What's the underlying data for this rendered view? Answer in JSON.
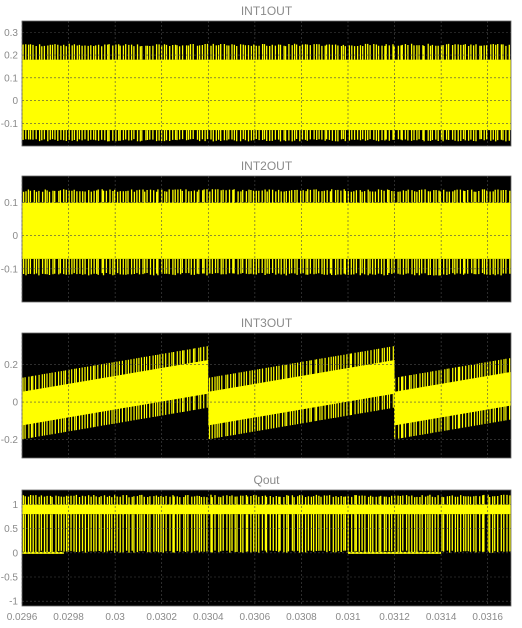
{
  "chart_data": [
    {
      "type": "line",
      "title": "INT1OUT",
      "xlim": [
        0.0296,
        0.0317
      ],
      "ylim": [
        -0.2,
        0.35
      ],
      "yticks": [
        -0.1,
        0,
        0.1,
        0.2,
        0.3
      ],
      "ytick_labels": [
        "-0.1",
        "0",
        "0.1",
        "0.2",
        "0.3"
      ],
      "grid": true,
      "series": [
        {
          "color": "#ffff00",
          "points": [
            [
              0.0296,
              -0.18
            ],
            [
              0.0316,
              -0.18
            ],
            [
              0.0316,
              0.25
            ],
            [
              0.0296,
              0.25
            ]
          ],
          "envelope": {
            "upper": 0.25,
            "lower": -0.18,
            "upper_dip": 0.15,
            "lower_spike": -0.07,
            "band_top": 0.18,
            "band_bottom": -0.13
          }
        }
      ]
    },
    {
      "type": "line",
      "title": "INT2OUT",
      "xlim": [
        0.0296,
        0.0317
      ],
      "ylim": [
        -0.2,
        0.18
      ],
      "yticks": [
        -0.1,
        0,
        0.1
      ],
      "ytick_labels": [
        "-0.1",
        "0",
        "0.1"
      ],
      "grid": true,
      "series": [
        {
          "color": "#ffff00",
          "envelope": {
            "upper": 0.14,
            "lower": -0.12,
            "upper_dip": 0.12,
            "lower_spike": -0.1,
            "band_top": 0.1,
            "band_bottom": -0.07
          }
        }
      ]
    },
    {
      "type": "line",
      "title": "INT3OUT",
      "xlim": [
        0.0296,
        0.0317
      ],
      "ylim": [
        -0.3,
        0.37
      ],
      "yticks": [
        -0.2,
        0,
        0.2
      ],
      "ytick_labels": [
        "-0.2",
        "0",
        "0.2"
      ],
      "grid": true,
      "series": [
        {
          "color": "#ffff00",
          "sawtooth": {
            "period_breaks": [
              0.0296,
              0.0304,
              0.0312,
              0.0317
            ],
            "upper_start": 0.13,
            "upper_end": 0.3,
            "lower_start": -0.2,
            "lower_end": -0.03,
            "band_halfwidth": 0.09
          }
        }
      ]
    },
    {
      "type": "line",
      "title": "Qout",
      "xlim": [
        0.0296,
        0.0317
      ],
      "ylim": [
        -1.1,
        1.3
      ],
      "yticks": [
        -1,
        -0.5,
        0,
        0.5,
        1
      ],
      "ytick_labels": [
        "-1",
        "-0.5",
        "0",
        "0.5",
        "1"
      ],
      "grid": true,
      "series": [
        {
          "color": "#ffff00",
          "envelope": {
            "upper": 1.2,
            "lower": 0,
            "upper_dip": 0.6,
            "lower_spike": 0.3,
            "band_top": 1.0,
            "band_bottom": 0.8
          },
          "low_segments": [
            [
              0.0296,
              0.02978
            ],
            [
              0.031,
              0.0314
            ]
          ]
        }
      ]
    }
  ],
  "x_axis": {
    "ticks": [
      0.0296,
      0.0298,
      0.03,
      0.0302,
      0.0304,
      0.0306,
      0.0308,
      0.031,
      0.0312,
      0.0314,
      0.0316
    ],
    "tick_labels": [
      "0.0296",
      "0.0298",
      "0.03",
      "0.0302",
      "0.0304",
      "0.0306",
      "0.0308",
      "0.031",
      "0.0312",
      "0.0314",
      "0.0316"
    ]
  },
  "colors": {
    "background": "#000000",
    "signal": "#ffff00",
    "grid": "#4a4a4a",
    "text": "#8a8a8a"
  }
}
